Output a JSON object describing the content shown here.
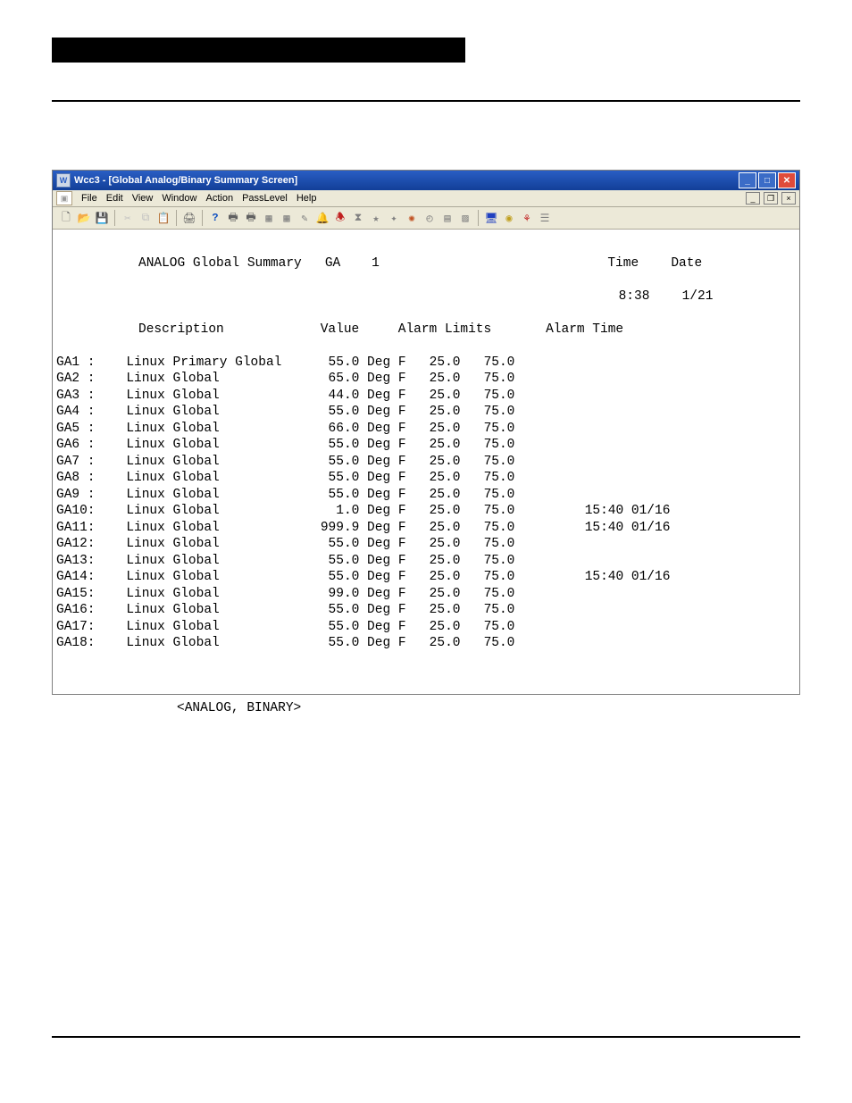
{
  "window": {
    "title": "Wcc3 - [Global Analog/Binary Summary Screen]",
    "menu": [
      "File",
      "Edit",
      "View",
      "Window",
      "Action",
      "PassLevel",
      "Help"
    ]
  },
  "header": {
    "title_left": "ANALOG Global Summary",
    "ga_label": "GA",
    "ga_num": "1",
    "time_label": "Time",
    "time_value": "8:38",
    "date_label": "Date",
    "date_value": "1/21"
  },
  "columns": {
    "desc": "Description",
    "value": "Value",
    "limits": "Alarm Limits",
    "atime": "Alarm Time"
  },
  "unit": "Deg F",
  "rows": [
    {
      "id": "GA1 :",
      "desc": "Linux Primary Global",
      "val": "55.0",
      "lo": "25.0",
      "hi": "75.0",
      "at": ""
    },
    {
      "id": "GA2 :",
      "desc": "Linux Global",
      "val": "65.0",
      "lo": "25.0",
      "hi": "75.0",
      "at": ""
    },
    {
      "id": "GA3 :",
      "desc": "Linux Global",
      "val": "44.0",
      "lo": "25.0",
      "hi": "75.0",
      "at": ""
    },
    {
      "id": "GA4 :",
      "desc": "Linux Global",
      "val": "55.0",
      "lo": "25.0",
      "hi": "75.0",
      "at": ""
    },
    {
      "id": "GA5 :",
      "desc": "Linux Global",
      "val": "66.0",
      "lo": "25.0",
      "hi": "75.0",
      "at": ""
    },
    {
      "id": "GA6 :",
      "desc": "Linux Global",
      "val": "55.0",
      "lo": "25.0",
      "hi": "75.0",
      "at": ""
    },
    {
      "id": "GA7 :",
      "desc": "Linux Global",
      "val": "55.0",
      "lo": "25.0",
      "hi": "75.0",
      "at": ""
    },
    {
      "id": "GA8 :",
      "desc": "Linux Global",
      "val": "55.0",
      "lo": "25.0",
      "hi": "75.0",
      "at": ""
    },
    {
      "id": "GA9 :",
      "desc": "Linux Global",
      "val": "55.0",
      "lo": "25.0",
      "hi": "75.0",
      "at": ""
    },
    {
      "id": "GA10:",
      "desc": "Linux Global",
      "val": "1.0",
      "lo": "25.0",
      "hi": "75.0",
      "at": "15:40 01/16"
    },
    {
      "id": "GA11:",
      "desc": "Linux Global",
      "val": "999.9",
      "lo": "25.0",
      "hi": "75.0",
      "at": "15:40 01/16"
    },
    {
      "id": "GA12:",
      "desc": "Linux Global",
      "val": "55.0",
      "lo": "25.0",
      "hi": "75.0",
      "at": ""
    },
    {
      "id": "GA13:",
      "desc": "Linux Global",
      "val": "55.0",
      "lo": "25.0",
      "hi": "75.0",
      "at": ""
    },
    {
      "id": "GA14:",
      "desc": "Linux Global",
      "val": "55.0",
      "lo": "25.0",
      "hi": "75.0",
      "at": "15:40 01/16"
    },
    {
      "id": "GA15:",
      "desc": "Linux Global",
      "val": "99.0",
      "lo": "25.0",
      "hi": "75.0",
      "at": ""
    },
    {
      "id": "GA16:",
      "desc": "Linux Global",
      "val": "55.0",
      "lo": "25.0",
      "hi": "75.0",
      "at": ""
    },
    {
      "id": "GA17:",
      "desc": "Linux Global",
      "val": "55.0",
      "lo": "25.0",
      "hi": "75.0",
      "at": ""
    },
    {
      "id": "GA18:",
      "desc": "Linux Global",
      "val": "55.0",
      "lo": "25.0",
      "hi": "75.0",
      "at": ""
    }
  ],
  "body_text": "<ANALOG, BINARY>",
  "colors": {
    "titlebar_start": "#2a5ec4",
    "titlebar_end": "#123f98",
    "close_btn": "#e04b3a",
    "menubar_bg": "#ece9d8",
    "border": "#aca899"
  }
}
